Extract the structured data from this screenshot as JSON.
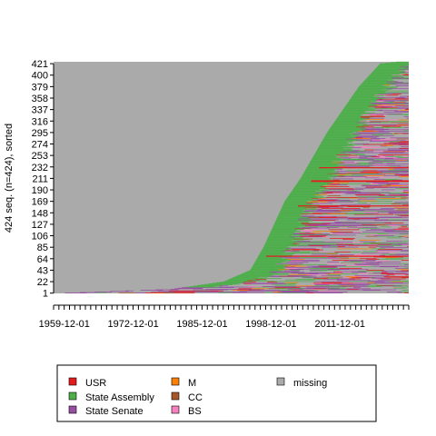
{
  "chart_data": {
    "type": "sequence-index-plot",
    "ylabel": "424 seq. (n=424), sorted",
    "n_sequences": 424,
    "y_ticks": [
      1,
      22,
      43,
      64,
      85,
      106,
      127,
      148,
      169,
      190,
      211,
      232,
      253,
      274,
      295,
      316,
      337,
      358,
      379,
      400,
      421
    ],
    "x_tick_labels": [
      "1959-12-01",
      "1972-12-01",
      "1985-12-01",
      "1998-12-01",
      "2011-12-01"
    ],
    "x_tick_label_years": [
      1959.92,
      1972.92,
      1985.92,
      1998.92,
      2011.92
    ],
    "x_range": [
      1957.9,
      2024.9
    ],
    "legend": [
      {
        "label": "USR",
        "color": "#e41a1c"
      },
      {
        "label": "State Assembly",
        "color": "#4daf4a"
      },
      {
        "label": "State Senate",
        "color": "#984ea3"
      },
      {
        "label": "M",
        "color": "#ff7f00"
      },
      {
        "label": "CC",
        "color": "#a65628"
      },
      {
        "label": "BS",
        "color": "#f781bf"
      },
      {
        "label": "missing",
        "color": "#aaaaaa"
      }
    ],
    "start_profile": [
      {
        "seq": 1,
        "year": 1960.0
      },
      {
        "seq": 8,
        "year": 1980.0
      },
      {
        "seq": 22,
        "year": 1990.0
      },
      {
        "seq": 43,
        "year": 1995.0
      },
      {
        "seq": 85,
        "year": 1997.5
      },
      {
        "seq": 127,
        "year": 1999.5
      },
      {
        "seq": 169,
        "year": 2001.5
      },
      {
        "seq": 211,
        "year": 2004.5
      },
      {
        "seq": 253,
        "year": 2007.0
      },
      {
        "seq": 295,
        "year": 2009.5
      },
      {
        "seq": 337,
        "year": 2012.5
      },
      {
        "seq": 379,
        "year": 2015.5
      },
      {
        "seq": 421,
        "year": 2019.5
      },
      {
        "seq": 424,
        "year": 2022.5
      }
    ]
  }
}
